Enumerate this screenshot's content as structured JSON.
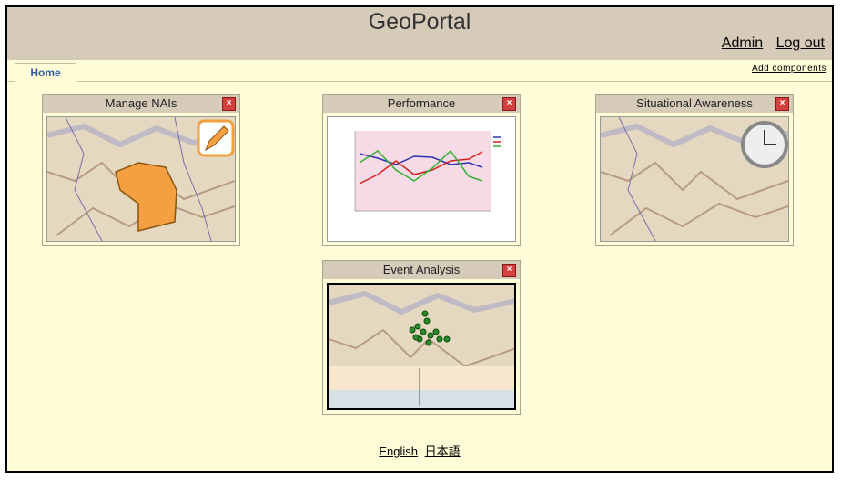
{
  "header": {
    "title": "GeoPortal",
    "admin_label": "Admin",
    "logout_label": "Log out"
  },
  "tabs": {
    "home_label": "Home",
    "add_components_label": "Add components"
  },
  "widgets": {
    "nais_title": "Manage NAIs",
    "performance_title": "Performance",
    "awareness_title": "Situational Awareness",
    "event_title": "Event Analysis"
  },
  "footer": {
    "english": "English",
    "japanese": "日本語"
  },
  "icons": {
    "close": "close-icon",
    "pencil": "pencil-icon",
    "clock": "clock-icon"
  },
  "colors": {
    "header": "#d6cbb8",
    "background": "#fffdd8",
    "close": "#d24040"
  }
}
